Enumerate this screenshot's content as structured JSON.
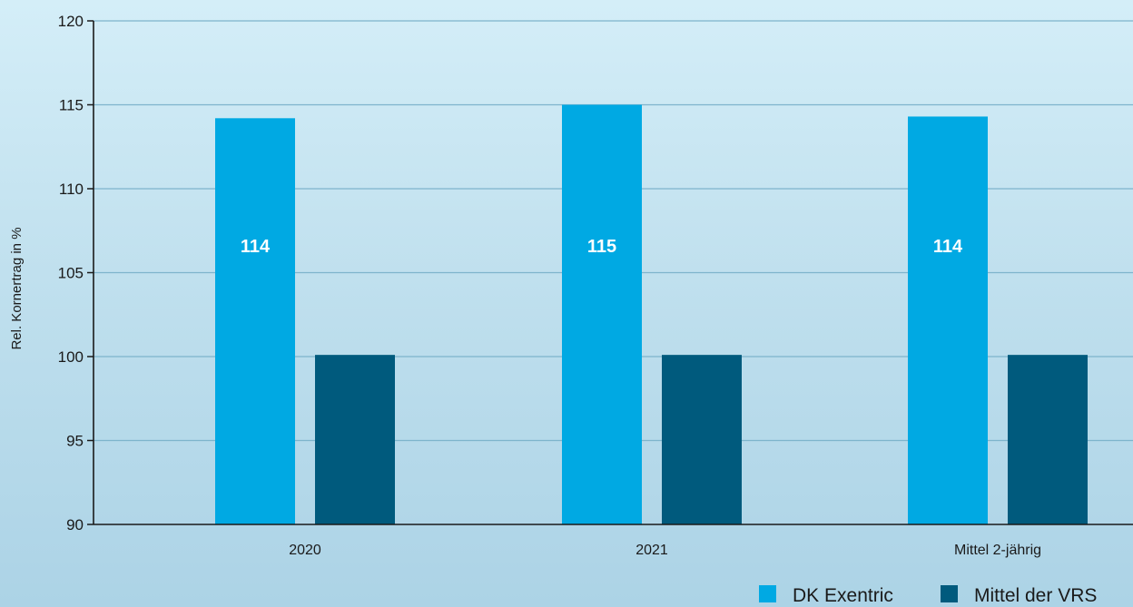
{
  "chart_data": {
    "type": "bar",
    "title": "",
    "xlabel": "",
    "ylabel": "Rel. Kornertrag in %",
    "ylim": [
      90,
      120
    ],
    "yticks": [
      90,
      95,
      100,
      105,
      110,
      115,
      120
    ],
    "grid": true,
    "legend_position": "bottom-right",
    "categories": [
      "2020",
      "2021",
      "Mittel 2-jährig"
    ],
    "series": [
      {
        "name": "DK Exentric",
        "color": "#00a9e3",
        "values": [
          114.2,
          115,
          114.3
        ],
        "labels": [
          "114",
          "115",
          "114"
        ]
      },
      {
        "name": "Mittel der VRS",
        "color": "#005a7d",
        "values": [
          100.1,
          100.1,
          100.1
        ],
        "labels": []
      }
    ],
    "colors": {
      "axis": "#1a1a1a",
      "grid": "#7eb4cc"
    }
  }
}
